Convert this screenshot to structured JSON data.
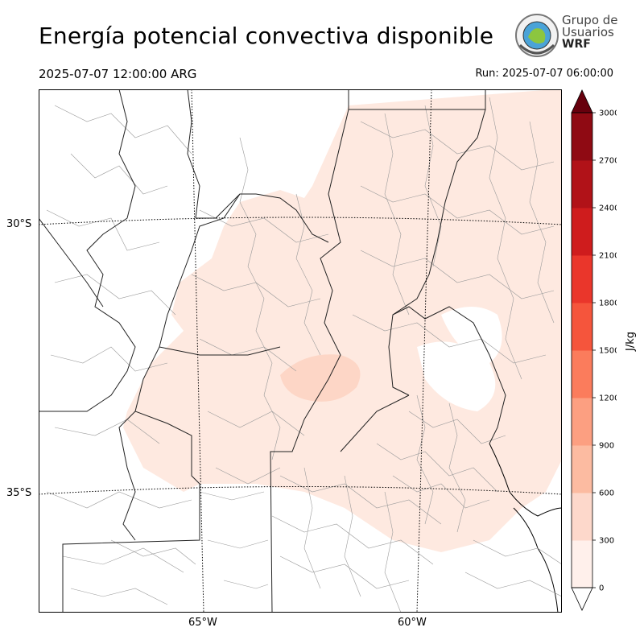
{
  "header": {
    "title": "Energía potencial convectiva disponible",
    "valid_time": "2025-07-07 12:00:00 ARG",
    "run_time": "Run: 2025-07-07 06:00:00"
  },
  "logo": {
    "line1": "Grupo de",
    "line2": "Usuarios",
    "line3": "WRF"
  },
  "map": {
    "lat_labels": [
      "30°S",
      "35°S"
    ],
    "lon_labels": [
      "65°W",
      "60°W"
    ],
    "background": "#ffffff",
    "border_color": "#000000",
    "fill_colors": [
      "#fee5d9",
      "#fdd0c0"
    ]
  },
  "colorbar": {
    "unit": "J/kg",
    "ticks": [
      "0",
      "300",
      "600",
      "900",
      "1200",
      "1500",
      "1800",
      "2100",
      "2400",
      "2700",
      "3000"
    ],
    "colors": [
      "#fff0eb",
      "#fdd8cb",
      "#fcbba1",
      "#fc9f81",
      "#fb7c5c",
      "#f5553c",
      "#ea362b",
      "#cf1c1d",
      "#b11218",
      "#8f0a13",
      "#67000d"
    ],
    "extend": "both"
  }
}
